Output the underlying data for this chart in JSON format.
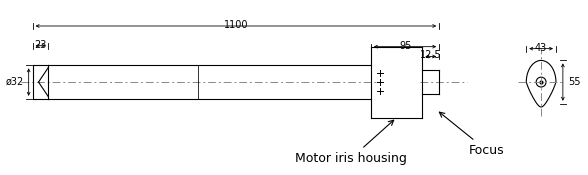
{
  "bg_color": "#ffffff",
  "line_color": "#000000",
  "dash_color": "#888888",
  "label_motor_iris": "Motor iris housing",
  "label_focus": "Focus",
  "dim_32": "ø32",
  "dim_23": "23",
  "dim_12_5": "12.5",
  "dim_95": "95",
  "dim_1100": "1100",
  "dim_43": "43",
  "dim_55": "55",
  "font_size_labels": 9,
  "font_size_dims": 7
}
